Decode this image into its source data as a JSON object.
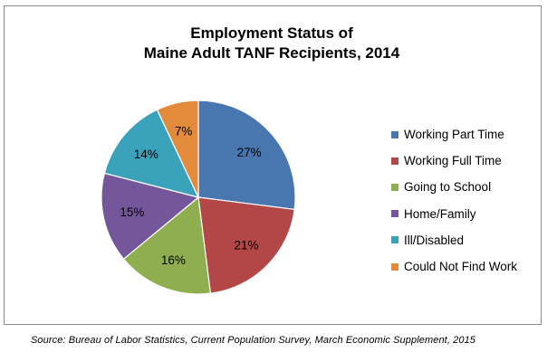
{
  "chart_data": {
    "type": "pie",
    "title": "Employment Status of",
    "title_line2": "Maine Adult TANF Recipients, 2014",
    "categories": [
      "Working Part Time",
      "Working Full Time",
      "Going to School",
      "Home/Family",
      "Ill/Disabled",
      "Could Not Find Work"
    ],
    "values": [
      27,
      21,
      16,
      15,
      14,
      7
    ],
    "data_labels": [
      "27%",
      "21%",
      "16%",
      "15%",
      "14%",
      "7%"
    ],
    "colors": [
      "#4a76b0",
      "#b34747",
      "#8eae50",
      "#73579a",
      "#3aa2bb",
      "#e48a3b"
    ],
    "legend_position": "right",
    "source": "Source: Bureau of Labor Statistics, Current Population Survey, March Economic Supplement, 2015"
  }
}
